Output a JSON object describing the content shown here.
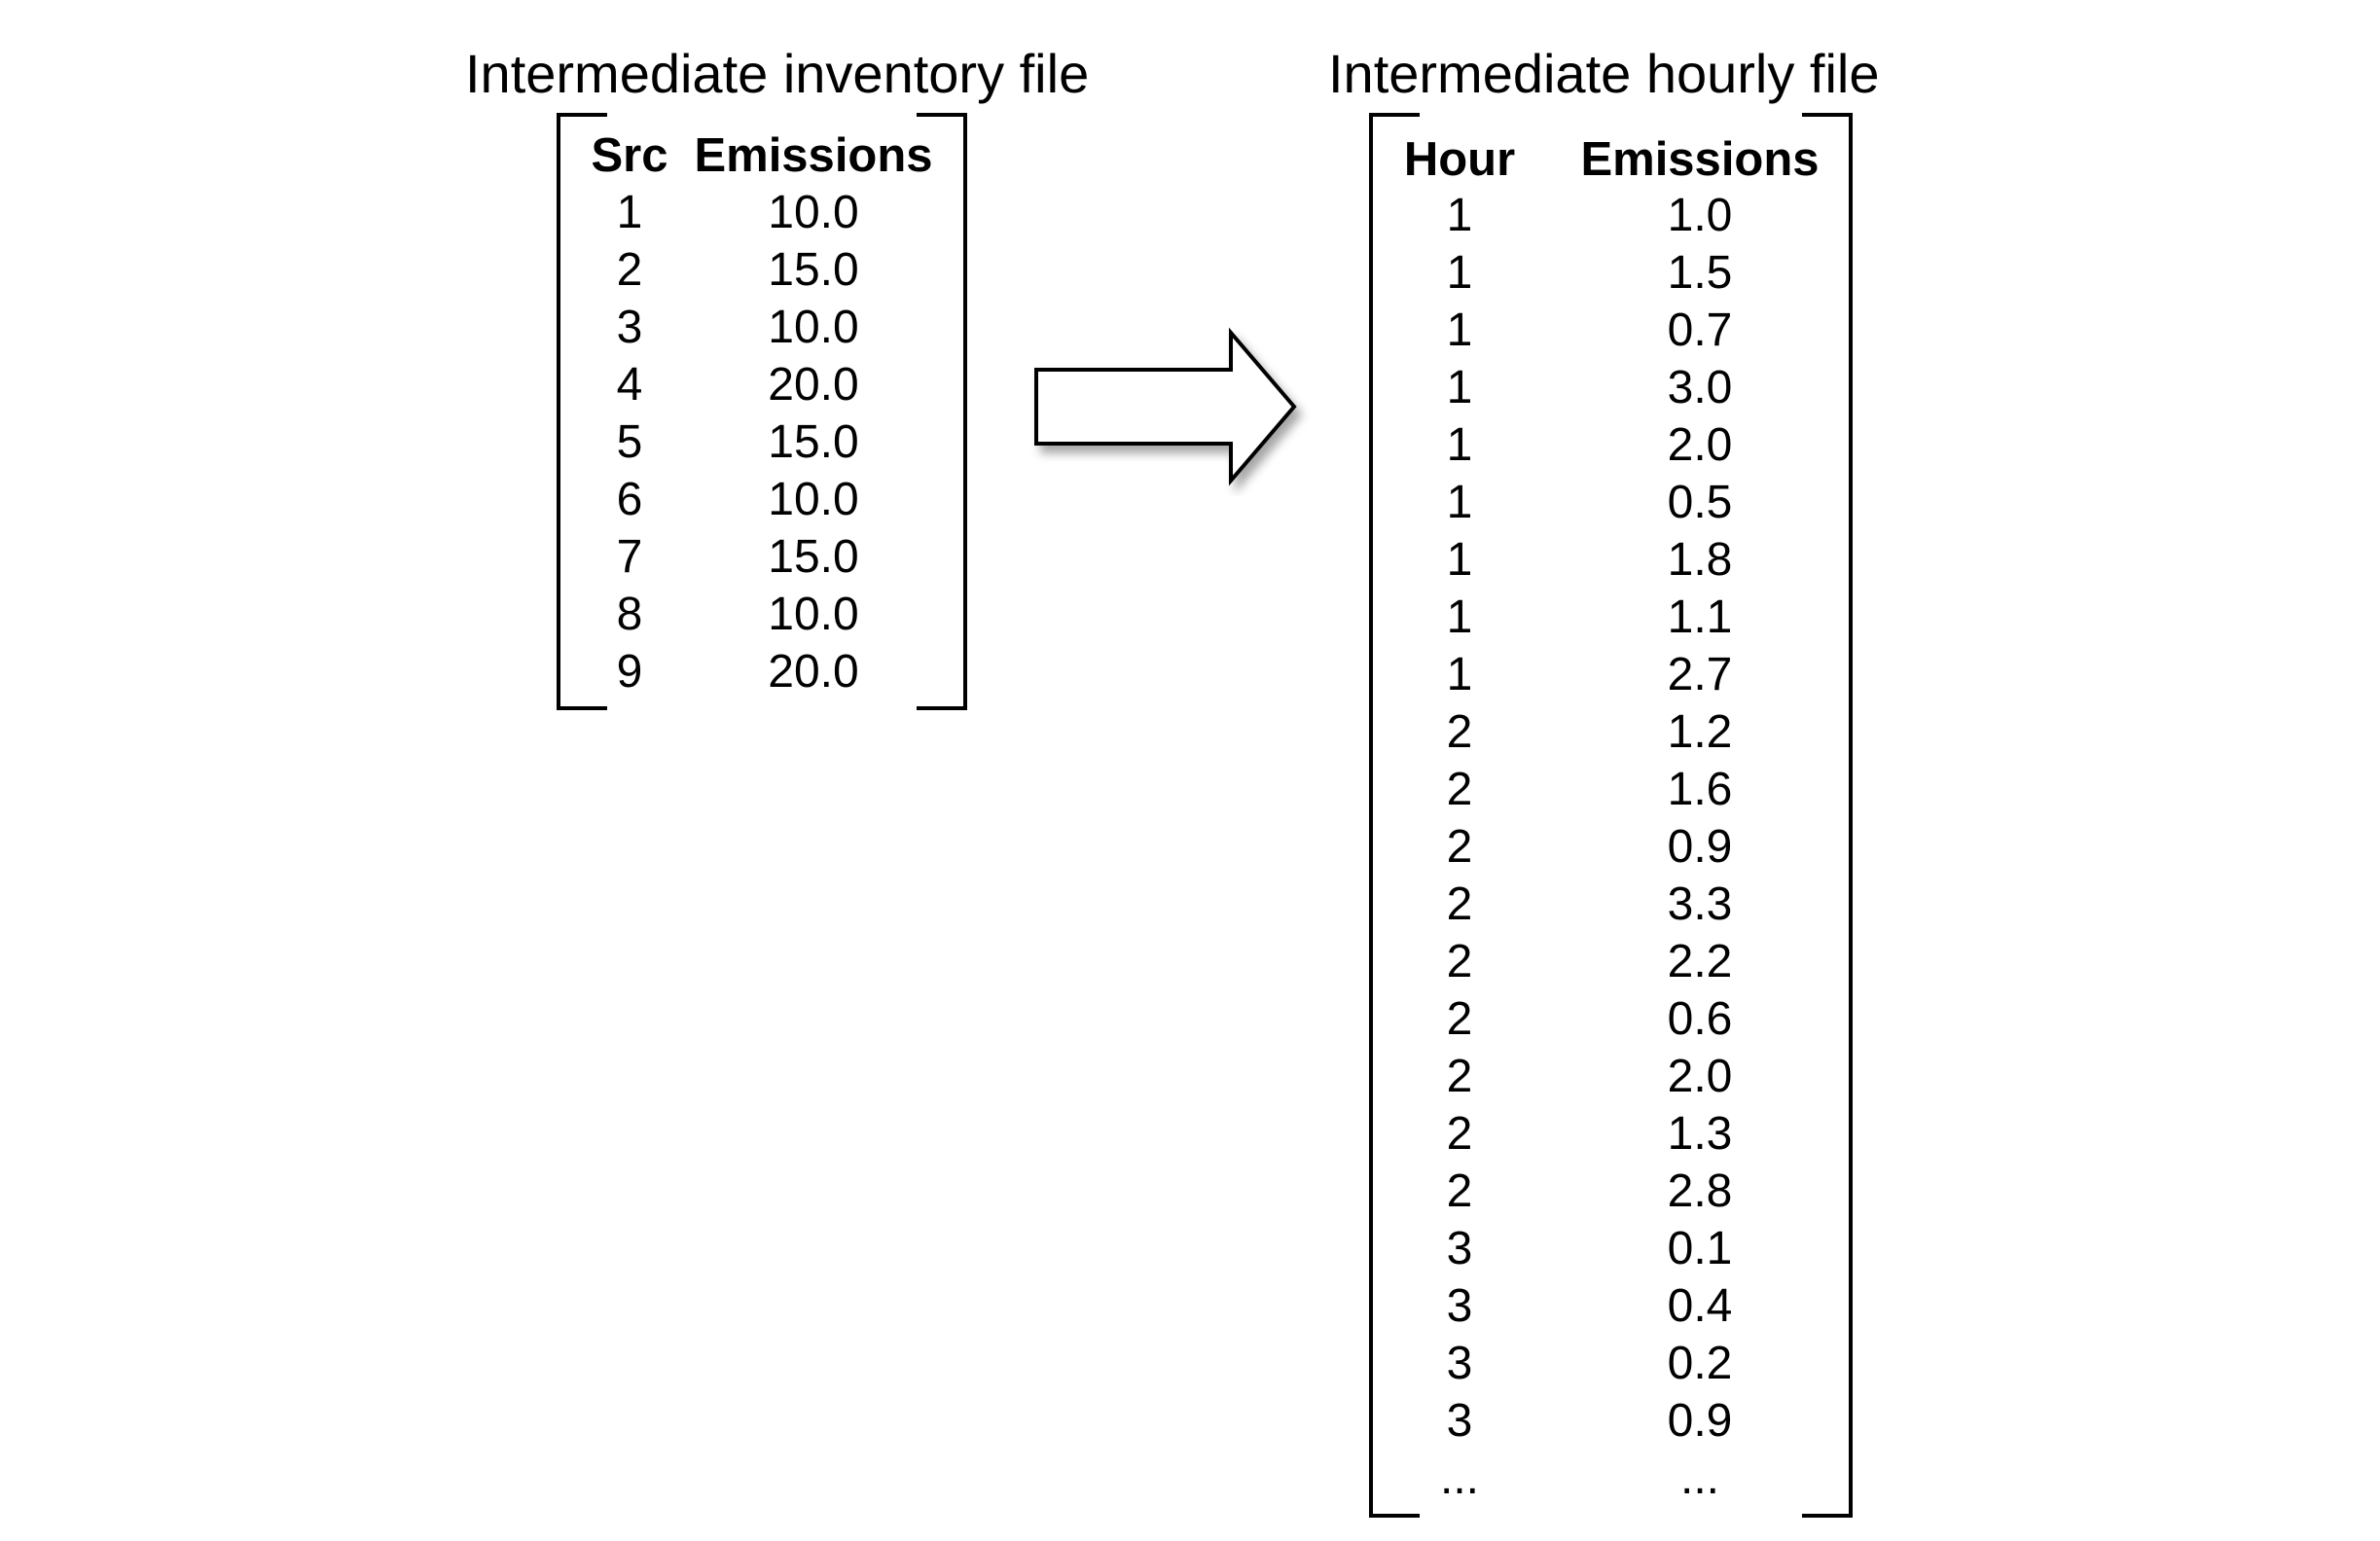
{
  "inventory": {
    "title": "Intermediate inventory file",
    "headers": [
      "Src",
      "Emissions"
    ],
    "rows": [
      [
        "1",
        "10.0"
      ],
      [
        "2",
        "15.0"
      ],
      [
        "3",
        "10.0"
      ],
      [
        "4",
        "20.0"
      ],
      [
        "5",
        "15.0"
      ],
      [
        "6",
        "10.0"
      ],
      [
        "7",
        "15.0"
      ],
      [
        "8",
        "10.0"
      ],
      [
        "9",
        "20.0"
      ]
    ]
  },
  "hourly": {
    "title": "Intermediate hourly file",
    "headers": [
      "Hour",
      "Emissions"
    ],
    "rows": [
      [
        "1",
        "1.0"
      ],
      [
        "1",
        "1.5"
      ],
      [
        "1",
        "0.7"
      ],
      [
        "1",
        "3.0"
      ],
      [
        "1",
        "2.0"
      ],
      [
        "1",
        "0.5"
      ],
      [
        "1",
        "1.8"
      ],
      [
        "1",
        "1.1"
      ],
      [
        "1",
        "2.7"
      ],
      [
        "2",
        "1.2"
      ],
      [
        "2",
        "1.6"
      ],
      [
        "2",
        "0.9"
      ],
      [
        "2",
        "3.3"
      ],
      [
        "2",
        "2.2"
      ],
      [
        "2",
        "0.6"
      ],
      [
        "2",
        "2.0"
      ],
      [
        "2",
        "1.3"
      ],
      [
        "2",
        "2.8"
      ],
      [
        "3",
        "0.1"
      ],
      [
        "3",
        "0.4"
      ],
      [
        "3",
        "0.2"
      ],
      [
        "3",
        "0.9"
      ],
      [
        "...",
        "..."
      ]
    ]
  },
  "arrow_icon": "right-arrow-icon"
}
